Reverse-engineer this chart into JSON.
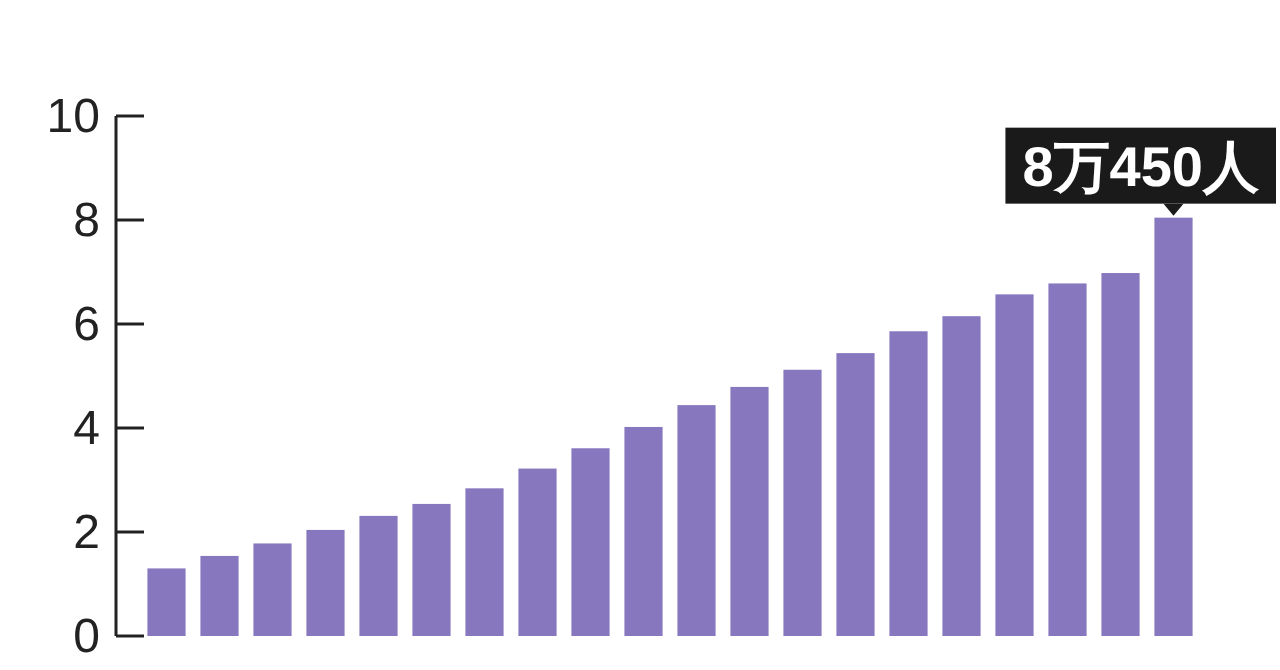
{
  "chart_data": {
    "type": "bar",
    "categories": [
      null,
      null,
      null,
      null,
      null,
      null,
      null,
      null,
      null,
      null,
      null,
      null,
      null,
      null,
      null,
      null,
      null,
      null,
      null,
      null
    ],
    "values": [
      1.3,
      1.54,
      1.78,
      2.04,
      2.31,
      2.54,
      2.84,
      3.22,
      3.61,
      4.02,
      4.44,
      4.79,
      5.12,
      5.44,
      5.86,
      6.15,
      6.57,
      6.78,
      6.98,
      8.045
    ],
    "value_labels": [
      null,
      null,
      null,
      null,
      null,
      null,
      null,
      null,
      null,
      null,
      null,
      null,
      null,
      null,
      null,
      null,
      null,
      null,
      null,
      "8万450人"
    ],
    "color": "#8677bf",
    "ylim": [
      0,
      10
    ],
    "yticks": [
      0,
      2,
      4,
      6,
      8,
      10
    ],
    "grid": false
  }
}
